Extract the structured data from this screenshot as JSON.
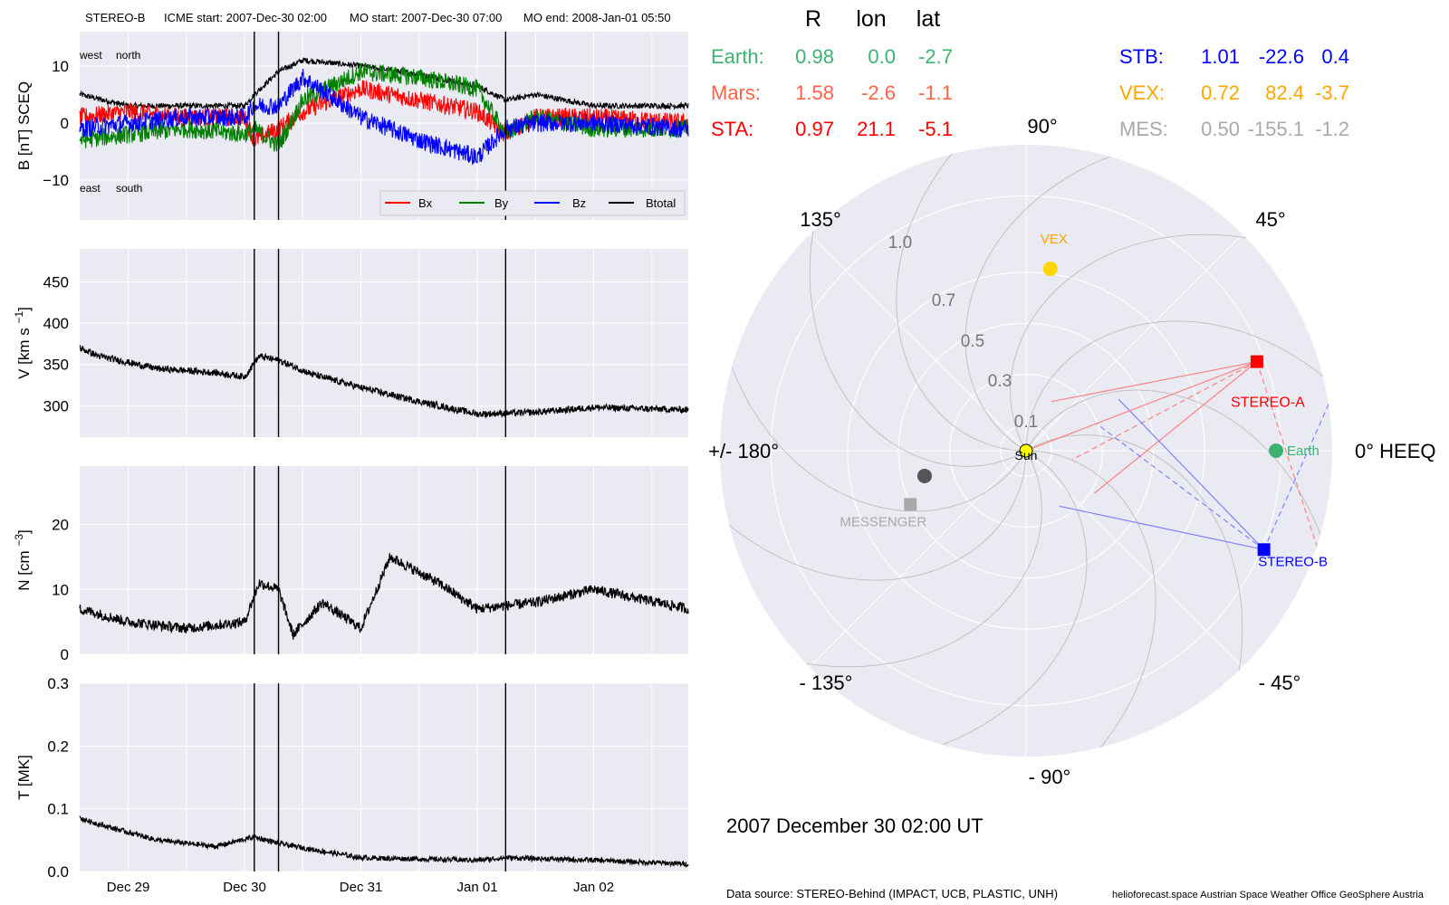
{
  "header": {
    "spacecraft": "STEREO-B",
    "icme_start": "ICME start: 2007-Dec-30 02:00",
    "mo_start": "MO start: 2007-Dec-30 07:00",
    "mo_end": "MO end: 2008-Jan-01 05:50"
  },
  "footer": {
    "date_label": "2007 December 30  02:00 UT",
    "data_source": "Data source: STEREO-Behind (IMPACT, UCB, PLASTIC, UNH)",
    "credits": "helioforecast.space   Austrian Space Weather Office   GeoSphere Austria"
  },
  "colors": {
    "background": "#eaeaf2",
    "grid": "#ffffff",
    "bx": "#ff0000",
    "by": "#008000",
    "bz": "#0000ff",
    "btotal": "#000000",
    "earth": "#3cb371",
    "mars": "#ff6347",
    "sta": "#ff0000",
    "stb": "#0000ff",
    "vex": "#ffa500",
    "mes": "#a9a9a9"
  },
  "position_table": {
    "headers": [
      "R",
      "lon",
      "lat"
    ],
    "rows": [
      {
        "name": "Earth:",
        "r": "0.98",
        "lon": "0.0",
        "lat": "-2.7",
        "color": "#3cb371"
      },
      {
        "name": "Mars:",
        "r": "1.58",
        "lon": "-2.6",
        "lat": "-1.1",
        "color": "#ff6347"
      },
      {
        "name": "STA:",
        "r": "0.97",
        "lon": "21.1",
        "lat": "-5.1",
        "color": "#ff0000"
      },
      {
        "name": "STB:",
        "r": "1.01",
        "lon": "-22.6",
        "lat": "0.4",
        "color": "#0000ff"
      },
      {
        "name": "VEX:",
        "r": "0.72",
        "lon": "82.4",
        "lat": "-3.7",
        "color": "#ffa500"
      },
      {
        "name": "MES:",
        "r": "0.50",
        "lon": "-155.1",
        "lat": "-1.2",
        "color": "#a9a9a9"
      }
    ]
  },
  "chart_data": [
    {
      "type": "line",
      "ylabel": "B [nT] SCEQ",
      "ylim": [
        -17,
        16
      ],
      "yticks": [
        -10,
        0,
        10
      ],
      "x_range": [
        "2007-12-28 14:00",
        "2008-01-02 19:30"
      ],
      "x_ticks": [
        "Dec 29",
        "Dec 30",
        "Dec 31",
        "Jan 01",
        "Jan 02"
      ],
      "event_lines": [
        "2007-12-30 02:00",
        "2007-12-30 07:00",
        "2008-01-01 05:50"
      ],
      "annotations": [
        "west",
        "north",
        "east",
        "south"
      ],
      "legend": [
        "Bx",
        "By",
        "Bz",
        "Btotal"
      ],
      "legend_position": "lower right",
      "series": [
        {
          "name": "Btotal",
          "x": [
            "2007-12-28 14:00",
            "2007-12-29 00:00",
            "2007-12-29 12:00",
            "2007-12-30 00:00",
            "2007-12-30 02:00",
            "2007-12-30 07:00",
            "2007-12-30 12:00",
            "2007-12-31 00:00",
            "2007-12-31 12:00",
            "2008-01-01 00:00",
            "2008-01-01 05:50",
            "2008-01-01 12:00",
            "2008-01-02 00:00",
            "2008-01-02 19:30"
          ],
          "y": [
            5,
            3,
            3,
            3,
            5,
            9,
            11,
            10,
            8.5,
            6.5,
            4,
            5,
            3,
            3
          ]
        },
        {
          "name": "Bx",
          "x": [
            "2007-12-28 14:00",
            "2007-12-29 00:00",
            "2007-12-29 12:00",
            "2007-12-30 00:00",
            "2007-12-30 02:00",
            "2007-12-30 07:00",
            "2007-12-30 12:00",
            "2007-12-31 00:00",
            "2007-12-31 12:00",
            "2008-01-01 00:00",
            "2008-01-01 05:50",
            "2008-01-01 12:00",
            "2008-01-02 00:00",
            "2008-01-02 19:30"
          ],
          "y": [
            1,
            2,
            1,
            1,
            -3,
            -1,
            2,
            6,
            4,
            2,
            -2,
            1,
            1,
            0
          ]
        },
        {
          "name": "By",
          "x": [
            "2007-12-28 14:00",
            "2007-12-29 00:00",
            "2007-12-29 12:00",
            "2007-12-30 00:00",
            "2007-12-30 02:00",
            "2007-12-30 07:00",
            "2007-12-30 12:00",
            "2007-12-31 00:00",
            "2007-12-31 12:00",
            "2008-01-01 00:00",
            "2008-01-01 05:50",
            "2008-01-01 12:00",
            "2008-01-02 00:00",
            "2008-01-02 19:30"
          ],
          "y": [
            -3,
            -2,
            -1,
            -2,
            -1,
            -4,
            4,
            9,
            8,
            6,
            -2,
            1,
            -1,
            -1
          ]
        },
        {
          "name": "Bz",
          "x": [
            "2007-12-28 14:00",
            "2007-12-29 00:00",
            "2007-12-29 12:00",
            "2007-12-30 00:00",
            "2007-12-30 02:00",
            "2007-12-30 07:00",
            "2007-12-30 12:00",
            "2007-12-31 00:00",
            "2007-12-31 12:00",
            "2008-01-01 00:00",
            "2008-01-01 05:50",
            "2008-01-01 12:00",
            "2008-01-02 00:00",
            "2008-01-02 19:30"
          ],
          "y": [
            -1,
            0,
            1,
            1,
            3,
            3,
            8,
            1,
            -3,
            -6,
            -1,
            0,
            0,
            -1
          ]
        }
      ]
    },
    {
      "type": "line",
      "ylabel": "V [km s^-1]",
      "ylim": [
        262,
        490
      ],
      "yticks": [
        300,
        350,
        400,
        450
      ],
      "x_ticks": [
        "Dec 29",
        "Dec 30",
        "Dec 31",
        "Jan 01",
        "Jan 02"
      ],
      "series": [
        {
          "name": "",
          "x": [
            "2007-12-28 14:00",
            "2007-12-28 18:00",
            "2007-12-29 06:00",
            "2007-12-29 18:00",
            "2007-12-30 00:00",
            "2007-12-30 03:00",
            "2007-12-30 07:00",
            "2007-12-30 14:00",
            "2007-12-31 00:00",
            "2007-12-31 12:00",
            "2008-01-01 00:00",
            "2008-01-01 12:00",
            "2008-01-02 00:00",
            "2008-01-02 19:30"
          ],
          "y": [
            370,
            360,
            345,
            340,
            335,
            360,
            355,
            338,
            322,
            305,
            290,
            292,
            298,
            295
          ]
        }
      ]
    },
    {
      "type": "line",
      "ylabel": "N [cm^-3]",
      "ylim": [
        0,
        29
      ],
      "yticks": [
        0,
        10,
        20
      ],
      "x_ticks": [
        "Dec 29",
        "Dec 30",
        "Dec 31",
        "Jan 01",
        "Jan 02"
      ],
      "series": [
        {
          "name": "",
          "x": [
            "2007-12-28 14:00",
            "2007-12-29 00:00",
            "2007-12-29 12:00",
            "2007-12-30 00:00",
            "2007-12-30 03:00",
            "2007-12-30 07:00",
            "2007-12-30 10:00",
            "2007-12-30 16:00",
            "2007-12-31 00:00",
            "2007-12-31 06:00",
            "2007-12-31 16:00",
            "2008-01-01 00:00",
            "2008-01-01 12:00",
            "2008-01-02 00:00",
            "2008-01-02 19:30"
          ],
          "y": [
            7,
            5,
            4,
            5,
            11,
            10,
            3,
            8,
            4,
            15,
            11,
            7,
            8,
            10,
            7
          ]
        }
      ]
    },
    {
      "type": "line",
      "ylabel": "T [MK]",
      "ylim": [
        0,
        0.3
      ],
      "yticks": [
        0.0,
        0.1,
        0.2,
        0.3
      ],
      "x_ticks": [
        "Dec 29",
        "Dec 30",
        "Dec 31",
        "Jan 01",
        "Jan 02"
      ],
      "series": [
        {
          "name": "",
          "x": [
            "2007-12-28 14:00",
            "2007-12-28 18:00",
            "2007-12-29 06:00",
            "2007-12-29 18:00",
            "2007-12-30 02:00",
            "2007-12-30 07:00",
            "2007-12-30 14:00",
            "2007-12-31 00:00",
            "2008-01-01 00:00",
            "2008-01-01 06:00",
            "2008-01-02 00:00",
            "2008-01-02 19:30"
          ],
          "y": [
            0.085,
            0.075,
            0.05,
            0.04,
            0.055,
            0.045,
            0.035,
            0.022,
            0.018,
            0.022,
            0.018,
            0.012
          ]
        }
      ]
    },
    {
      "type": "scatter",
      "projection": "polar",
      "theta_labels": [
        "0° HEEQ",
        "45°",
        "90°",
        "135°",
        "+/- 180°",
        "- 135°",
        "- 90°",
        "- 45°"
      ],
      "r_labels": [
        "0.1",
        "0.3",
        "0.5",
        "0.7",
        "1.0"
      ],
      "r_max": 1.2,
      "objects": [
        {
          "label": "Sun",
          "r": 0,
          "lon": 0,
          "marker": "circle",
          "color": "#ffff00"
        },
        {
          "label": "Earth",
          "r": 0.98,
          "lon": 0.0,
          "marker": "circle",
          "color": "#3cb371"
        },
        {
          "label": "STEREO-A",
          "r": 0.97,
          "lon": 21.1,
          "marker": "square",
          "color": "#ff0000"
        },
        {
          "label": "STEREO-B",
          "r": 1.01,
          "lon": -22.6,
          "marker": "square",
          "color": "#0000ff"
        },
        {
          "label": "VEX",
          "r": 0.72,
          "lon": 82.4,
          "marker": "circle",
          "color": "#ffd700"
        },
        {
          "label": "MESSENGER",
          "r": 0.5,
          "lon": -155.1,
          "marker": "square",
          "color": "#a9a9a9"
        },
        {
          "label": "",
          "r": 0.41,
          "lon": -166,
          "marker": "circle",
          "color": "#555555"
        }
      ],
      "fov_lines": [
        {
          "from": "STEREO-A",
          "lon_deg": [
            191,
            219
          ],
          "style": "solid",
          "color": "#ff8080"
        },
        {
          "from": "STEREO-A",
          "lon_deg": [
            208,
            288
          ],
          "style": "dashed",
          "color": "#ff8080"
        },
        {
          "from": "STEREO-B",
          "lon_deg": [
            168,
            134
          ],
          "style": "solid",
          "color": "#8080ff"
        },
        {
          "from": "STEREO-B",
          "lon_deg": [
            143,
            66
          ],
          "style": "dashed",
          "color": "#8080ff"
        }
      ]
    }
  ]
}
